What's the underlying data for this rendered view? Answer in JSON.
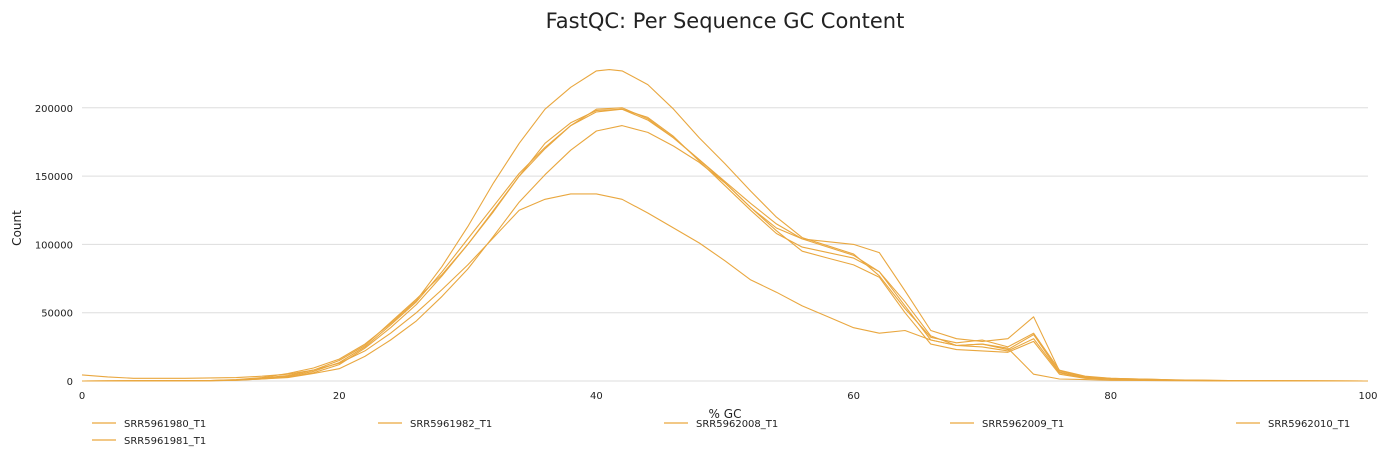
{
  "chart_data": {
    "type": "line",
    "title": "FastQC: Per Sequence GC Content",
    "xlabel": "% GC",
    "ylabel": "Count",
    "xlim": [
      0,
      100
    ],
    "ylim": [
      0,
      235000
    ],
    "xticks": [
      0,
      20,
      40,
      60,
      80,
      100
    ],
    "yticks": [
      0,
      50000,
      100000,
      150000,
      200000
    ],
    "grid": "horizontal",
    "legend_position": "bottom",
    "line_color": "#e9a73f",
    "series": [
      {
        "name": "SRR5961980_T1",
        "points": [
          [
            0,
            4500
          ],
          [
            2,
            3000
          ],
          [
            4,
            2000
          ],
          [
            8,
            2000
          ],
          [
            12,
            2500
          ],
          [
            14,
            3500
          ],
          [
            16,
            5000
          ],
          [
            18,
            8000
          ],
          [
            20,
            13000
          ],
          [
            22,
            22000
          ],
          [
            24,
            35000
          ],
          [
            26,
            50000
          ],
          [
            28,
            67000
          ],
          [
            30,
            85000
          ],
          [
            32,
            105000
          ],
          [
            34,
            125000
          ],
          [
            36,
            133000
          ],
          [
            38,
            137000
          ],
          [
            40,
            137000
          ],
          [
            42,
            133000
          ],
          [
            44,
            123000
          ],
          [
            46,
            112000
          ],
          [
            48,
            101000
          ],
          [
            50,
            88000
          ],
          [
            52,
            74000
          ],
          [
            54,
            65000
          ],
          [
            56,
            55000
          ],
          [
            58,
            47000
          ],
          [
            60,
            39000
          ],
          [
            62,
            35000
          ],
          [
            64,
            37000
          ],
          [
            66,
            30000
          ],
          [
            68,
            26000
          ],
          [
            70,
            27000
          ],
          [
            72,
            24000
          ],
          [
            74,
            5000
          ],
          [
            76,
            1500
          ],
          [
            78,
            1000
          ],
          [
            80,
            500
          ],
          [
            85,
            200
          ],
          [
            90,
            50
          ],
          [
            100,
            0
          ]
        ]
      },
      {
        "name": "SRR5961982_T1",
        "points": [
          [
            0,
            0
          ],
          [
            10,
            200
          ],
          [
            12,
            500
          ],
          [
            14,
            1500
          ],
          [
            16,
            2500
          ],
          [
            18,
            5500
          ],
          [
            20,
            9000
          ],
          [
            22,
            18000
          ],
          [
            24,
            30000
          ],
          [
            26,
            44000
          ],
          [
            28,
            62000
          ],
          [
            30,
            82000
          ],
          [
            32,
            106000
          ],
          [
            34,
            131000
          ],
          [
            36,
            151000
          ],
          [
            38,
            169000
          ],
          [
            40,
            183000
          ],
          [
            42,
            187000
          ],
          [
            44,
            182000
          ],
          [
            46,
            172000
          ],
          [
            48,
            160000
          ],
          [
            50,
            145000
          ],
          [
            52,
            127000
          ],
          [
            54,
            112000
          ],
          [
            56,
            104000
          ],
          [
            58,
            102000
          ],
          [
            60,
            100000
          ],
          [
            62,
            94000
          ],
          [
            64,
            66000
          ],
          [
            66,
            37000
          ],
          [
            68,
            31000
          ],
          [
            70,
            29000
          ],
          [
            72,
            31000
          ],
          [
            74,
            47000
          ],
          [
            76,
            7500
          ],
          [
            78,
            3000
          ],
          [
            80,
            2000
          ],
          [
            85,
            800
          ],
          [
            90,
            200
          ],
          [
            100,
            0
          ]
        ]
      },
      {
        "name": "SRR5962008_T1",
        "points": [
          [
            0,
            0
          ],
          [
            10,
            200
          ],
          [
            12,
            600
          ],
          [
            14,
            1500
          ],
          [
            16,
            3000
          ],
          [
            18,
            6000
          ],
          [
            20,
            12000
          ],
          [
            22,
            24000
          ],
          [
            24,
            39000
          ],
          [
            26,
            56000
          ],
          [
            28,
            77000
          ],
          [
            30,
            100000
          ],
          [
            32,
            124000
          ],
          [
            34,
            150000
          ],
          [
            36,
            174000
          ],
          [
            38,
            189000
          ],
          [
            40,
            198000
          ],
          [
            42,
            199000
          ],
          [
            44,
            191000
          ],
          [
            46,
            178000
          ],
          [
            48,
            162000
          ],
          [
            50,
            145000
          ],
          [
            52,
            127000
          ],
          [
            54,
            110000
          ],
          [
            56,
            95000
          ],
          [
            58,
            90000
          ],
          [
            60,
            85000
          ],
          [
            62,
            76000
          ],
          [
            64,
            50000
          ],
          [
            66,
            27000
          ],
          [
            68,
            23000
          ],
          [
            70,
            22000
          ],
          [
            72,
            21000
          ],
          [
            74,
            29000
          ],
          [
            76,
            5000
          ],
          [
            78,
            2000
          ],
          [
            80,
            1200
          ],
          [
            85,
            500
          ],
          [
            90,
            100
          ],
          [
            100,
            0
          ]
        ]
      },
      {
        "name": "SRR5962009_T1",
        "points": [
          [
            0,
            0
          ],
          [
            10,
            300
          ],
          [
            12,
            800
          ],
          [
            14,
            2000
          ],
          [
            16,
            3500
          ],
          [
            18,
            7000
          ],
          [
            20,
            13500
          ],
          [
            22,
            25000
          ],
          [
            24,
            41000
          ],
          [
            26,
            58000
          ],
          [
            28,
            80000
          ],
          [
            30,
            104000
          ],
          [
            32,
            128000
          ],
          [
            34,
            152000
          ],
          [
            36,
            171000
          ],
          [
            38,
            187000
          ],
          [
            40,
            197000
          ],
          [
            42,
            199000
          ],
          [
            44,
            193000
          ],
          [
            46,
            179000
          ],
          [
            48,
            161000
          ],
          [
            50,
            143000
          ],
          [
            52,
            125000
          ],
          [
            54,
            108000
          ],
          [
            56,
            98000
          ],
          [
            58,
            94000
          ],
          [
            60,
            90000
          ],
          [
            62,
            80000
          ],
          [
            64,
            55000
          ],
          [
            66,
            30000
          ],
          [
            68,
            26000
          ],
          [
            70,
            25000
          ],
          [
            72,
            22000
          ],
          [
            74,
            31000
          ],
          [
            76,
            6000
          ],
          [
            78,
            2200
          ],
          [
            80,
            1500
          ],
          [
            85,
            600
          ],
          [
            90,
            150
          ],
          [
            100,
            0
          ]
        ]
      },
      {
        "name": "SRR5962010_T1",
        "points": [
          [
            0,
            0
          ],
          [
            10,
            300
          ],
          [
            12,
            800
          ],
          [
            14,
            2200
          ],
          [
            16,
            4000
          ],
          [
            18,
            8000
          ],
          [
            20,
            15000
          ],
          [
            22,
            26000
          ],
          [
            24,
            43000
          ],
          [
            26,
            60000
          ],
          [
            28,
            78000
          ],
          [
            30,
            100000
          ],
          [
            32,
            125000
          ],
          [
            34,
            150000
          ],
          [
            36,
            170000
          ],
          [
            38,
            187000
          ],
          [
            40,
            199000
          ],
          [
            42,
            200000
          ],
          [
            44,
            192000
          ],
          [
            46,
            178000
          ],
          [
            48,
            162000
          ],
          [
            50,
            146000
          ],
          [
            52,
            130000
          ],
          [
            54,
            115000
          ],
          [
            56,
            104000
          ],
          [
            58,
            98000
          ],
          [
            60,
            92000
          ],
          [
            62,
            80000
          ],
          [
            64,
            58000
          ],
          [
            66,
            33000
          ],
          [
            68,
            26000
          ],
          [
            70,
            27000
          ],
          [
            72,
            23000
          ],
          [
            74,
            34000
          ],
          [
            76,
            6500
          ],
          [
            78,
            2500
          ],
          [
            80,
            1500
          ],
          [
            85,
            600
          ],
          [
            90,
            150
          ],
          [
            100,
            0
          ]
        ]
      },
      {
        "name": "SRR5961981_T1",
        "points": [
          [
            0,
            0
          ],
          [
            10,
            400
          ],
          [
            12,
            1000
          ],
          [
            14,
            2500
          ],
          [
            16,
            5500
          ],
          [
            18,
            9500
          ],
          [
            20,
            16000
          ],
          [
            22,
            27000
          ],
          [
            24,
            42000
          ],
          [
            26,
            59000
          ],
          [
            28,
            84000
          ],
          [
            30,
            113000
          ],
          [
            32,
            145000
          ],
          [
            34,
            174000
          ],
          [
            36,
            199000
          ],
          [
            38,
            215000
          ],
          [
            40,
            227000
          ],
          [
            41,
            228000
          ],
          [
            42,
            227000
          ],
          [
            44,
            217000
          ],
          [
            46,
            199000
          ],
          [
            48,
            178000
          ],
          [
            50,
            159000
          ],
          [
            52,
            139000
          ],
          [
            54,
            120000
          ],
          [
            56,
            105000
          ],
          [
            58,
            99000
          ],
          [
            60,
            93000
          ],
          [
            62,
            77000
          ],
          [
            64,
            53000
          ],
          [
            66,
            32000
          ],
          [
            68,
            28000
          ],
          [
            70,
            30000
          ],
          [
            72,
            25000
          ],
          [
            74,
            35000
          ],
          [
            76,
            8000
          ],
          [
            78,
            3500
          ],
          [
            80,
            2000
          ],
          [
            85,
            800
          ],
          [
            90,
            200
          ],
          [
            100,
            0
          ]
        ]
      }
    ]
  }
}
